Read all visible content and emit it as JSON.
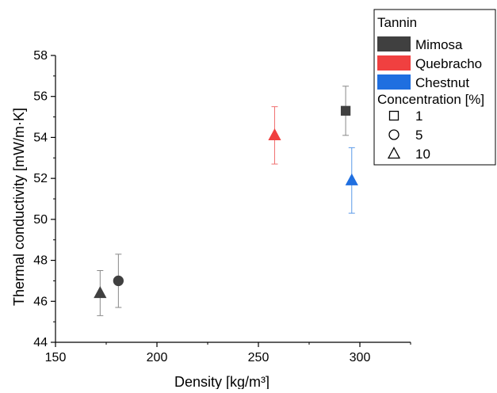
{
  "chart_data": {
    "type": "scatter",
    "title": "",
    "xlabel": "Density [kg/m³]",
    "ylabel": "Thermal conductivity [mW/m·K]",
    "xlim": [
      150,
      325
    ],
    "ylim": [
      44,
      58
    ],
    "xticks": [
      150,
      200,
      250,
      300
    ],
    "yticks": [
      44,
      46,
      48,
      50,
      52,
      54,
      56,
      58
    ],
    "grid": false,
    "legend_position": "top-right",
    "legend": {
      "tannin_title": "Tannin",
      "tannins": [
        {
          "name": "Mimosa",
          "color": "#404040"
        },
        {
          "name": "Quebracho",
          "color": "#f04040"
        },
        {
          "name": "Chestnut",
          "color": "#1f6fe0"
        }
      ],
      "concentration_title": "Concentration [%]",
      "concentrations": [
        {
          "label": "1",
          "marker": "square"
        },
        {
          "label": "5",
          "marker": "circle"
        },
        {
          "label": "10",
          "marker": "triangle"
        }
      ]
    },
    "points": [
      {
        "tannin": "Mimosa",
        "concentration": "10",
        "x": 172,
        "y": 46.4,
        "yerr": [
          45.3,
          47.5
        ],
        "marker": "triangle",
        "color": "#404040"
      },
      {
        "tannin": "Mimosa",
        "concentration": "5",
        "x": 181,
        "y": 47.0,
        "yerr": [
          45.7,
          48.3
        ],
        "marker": "circle",
        "color": "#404040"
      },
      {
        "tannin": "Quebracho",
        "concentration": "10",
        "x": 258,
        "y": 54.1,
        "yerr": [
          52.7,
          55.5
        ],
        "marker": "triangle",
        "color": "#f04040"
      },
      {
        "tannin": "Mimosa",
        "concentration": "1",
        "x": 293,
        "y": 55.3,
        "yerr": [
          54.1,
          56.5
        ],
        "marker": "square",
        "color": "#404040"
      },
      {
        "tannin": "Chestnut",
        "concentration": "10",
        "x": 296,
        "y": 51.9,
        "yerr": [
          50.3,
          53.5
        ],
        "marker": "triangle",
        "color": "#1f6fe0"
      }
    ]
  }
}
